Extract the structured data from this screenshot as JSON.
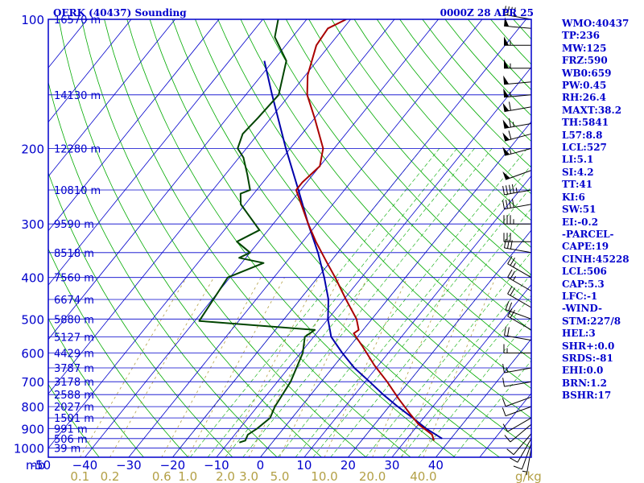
{
  "header": {
    "title_left": "OERK (40437) Sounding",
    "title_right": "0000Z 28 APR 25"
  },
  "indices": [
    "WMO:40437",
    "TP:236",
    "MW:125",
    "FRZ:590",
    "WB0:659",
    "PW:0.45",
    "RH:26.4",
    "MAXT:38.2",
    "TH:5841",
    "L57:8.8",
    "LCL:527",
    "LI:5.1",
    "SI:4.2",
    "TT:41",
    "KI:6",
    "SW:51",
    "EI:-0.2",
    "-PARCEL-",
    "CAPE:19",
    "CINH:45228",
    "LCL:506",
    "CAP:5.3",
    "LFC:-1",
    "-WIND-",
    "STM:227/8",
    "HEL:3",
    "SHR+:0.0",
    "SRDS:-81",
    "EHI:0.0",
    "BRN:1.2",
    "BSHR:17"
  ],
  "colors": {
    "frame": "#0000cc",
    "isobar": "#0000cc",
    "isotherm": "#0000cc",
    "dry_adiabat": "#00aa00",
    "moist_adiabat": "#00aa00",
    "mixing_ratio": "#b3a046",
    "mixing_ratio_label": "#b3a046",
    "temperature": "#aa0000",
    "dewpoint": "#004400",
    "parcel": "#0000aa",
    "wind_barb": "#000000"
  },
  "chart_data": {
    "type": "skew-t",
    "title": "OERK (40437) Sounding",
    "ylabel": "mb",
    "xlabel": "",
    "xlabel_units": "g/kg",
    "pressure_ticks": [
      100,
      200,
      300,
      400,
      500,
      600,
      700,
      800,
      900,
      1000
    ],
    "pressure_range": [
      1050,
      100
    ],
    "temperature_range": [
      -50,
      50
    ],
    "temperature_ticks": [
      -50,
      -40,
      -30,
      -20,
      -10,
      0,
      10,
      20,
      30,
      40
    ],
    "temperature_tick_labels": [
      "-50",
      "−40",
      "−30",
      "−20",
      "−10",
      "0",
      "10",
      "20",
      "30",
      "40"
    ],
    "height_labels": [
      {
        "p": 100,
        "label": "16570 m"
      },
      {
        "p": 150,
        "label": "14130 m"
      },
      {
        "p": 200,
        "label": "12280 m"
      },
      {
        "p": 250,
        "label": "10810 m"
      },
      {
        "p": 300,
        "label": "9590 m"
      },
      {
        "p": 350,
        "label": "8518 m"
      },
      {
        "p": 400,
        "label": "7560 m"
      },
      {
        "p": 450,
        "label": "6674 m"
      },
      {
        "p": 500,
        "label": "5880 m"
      },
      {
        "p": 550,
        "label": "5127 m"
      },
      {
        "p": 600,
        "label": "4429 m"
      },
      {
        "p": 650,
        "label": "3787 m"
      },
      {
        "p": 700,
        "label": "3178 m"
      },
      {
        "p": 750,
        "label": "2588 m"
      },
      {
        "p": 800,
        "label": "2027 m"
      },
      {
        "p": 850,
        "label": "1501 m"
      },
      {
        "p": 900,
        "label": "991 m"
      },
      {
        "p": 950,
        "label": "506 m"
      },
      {
        "p": 1000,
        "label": "39 m"
      }
    ],
    "mixing_ratios": [
      0.1,
      0.2,
      0.6,
      1.0,
      2.0,
      3.0,
      5.0,
      10.0,
      20.0,
      30.0,
      40.0
    ],
    "mixing_ratio_labels": [
      "0.1",
      "0.2",
      "0.6",
      "1.0",
      "2.0",
      "3.0",
      "5.0",
      "10.0",
      "20.0",
      "",
      "40.0"
    ],
    "temperature": [
      {
        "p": 960,
        "t": 36.5
      },
      {
        "p": 930,
        "t": 35.0
      },
      {
        "p": 880,
        "t": 30.0
      },
      {
        "p": 830,
        "t": 26.0
      },
      {
        "p": 770,
        "t": 21.0
      },
      {
        "p": 700,
        "t": 15.0
      },
      {
        "p": 640,
        "t": 9.0
      },
      {
        "p": 580,
        "t": 3.0
      },
      {
        "p": 540,
        "t": -1.5
      },
      {
        "p": 530,
        "t": -1.0
      },
      {
        "p": 500,
        "t": -3.5
      },
      {
        "p": 450,
        "t": -9.5
      },
      {
        "p": 400,
        "t": -16.0
      },
      {
        "p": 370,
        "t": -20.5
      },
      {
        "p": 330,
        "t": -27.0
      },
      {
        "p": 300,
        "t": -32.0
      },
      {
        "p": 250,
        "t": -41.0
      },
      {
        "p": 240,
        "t": -41.0
      },
      {
        "p": 220,
        "t": -40.0
      },
      {
        "p": 200,
        "t": -42.5
      },
      {
        "p": 170,
        "t": -50.0
      },
      {
        "p": 150,
        "t": -56.0
      },
      {
        "p": 135,
        "t": -59.5
      },
      {
        "p": 115,
        "t": -63.0
      },
      {
        "p": 105,
        "t": -63.5
      },
      {
        "p": 100,
        "t": -61.0
      }
    ],
    "dewpoint": [
      {
        "p": 970,
        "t": -7.5
      },
      {
        "p": 960,
        "t": -6.5
      },
      {
        "p": 930,
        "t": -7.0
      },
      {
        "p": 900,
        "t": -6.0
      },
      {
        "p": 850,
        "t": -5.0
      },
      {
        "p": 800,
        "t": -6.0
      },
      {
        "p": 700,
        "t": -7.0
      },
      {
        "p": 600,
        "t": -9.5
      },
      {
        "p": 550,
        "t": -12.0
      },
      {
        "p": 530,
        "t": -11.0
      },
      {
        "p": 505,
        "t": -39.0
      },
      {
        "p": 400,
        "t": -40.5
      },
      {
        "p": 370,
        "t": -35.0
      },
      {
        "p": 360,
        "t": -41.5
      },
      {
        "p": 350,
        "t": -40.0
      },
      {
        "p": 330,
        "t": -45.0
      },
      {
        "p": 310,
        "t": -42.0
      },
      {
        "p": 270,
        "t": -51.0
      },
      {
        "p": 255,
        "t": -53.0
      },
      {
        "p": 250,
        "t": -51.5
      },
      {
        "p": 230,
        "t": -55.0
      },
      {
        "p": 210,
        "t": -59.0
      },
      {
        "p": 200,
        "t": -62.0
      },
      {
        "p": 185,
        "t": -63.5
      },
      {
        "p": 170,
        "t": -63.0
      },
      {
        "p": 150,
        "t": -62.5
      },
      {
        "p": 125,
        "t": -67.0
      },
      {
        "p": 110,
        "t": -74.0
      },
      {
        "p": 100,
        "t": -76.5
      }
    ],
    "parcel": [
      {
        "p": 950,
        "t": 38.0
      },
      {
        "p": 900,
        "t": 32.5
      },
      {
        "p": 850,
        "t": 27.5
      },
      {
        "p": 800,
        "t": 22.0
      },
      {
        "p": 750,
        "t": 16.5
      },
      {
        "p": 700,
        "t": 11.0
      },
      {
        "p": 650,
        "t": 5.0
      },
      {
        "p": 600,
        "t": -0.5
      },
      {
        "p": 550,
        "t": -6.0
      },
      {
        "p": 500,
        "t": -10.0
      },
      {
        "p": 450,
        "t": -13.5
      },
      {
        "p": 400,
        "t": -18.5
      },
      {
        "p": 350,
        "t": -24.5
      },
      {
        "p": 300,
        "t": -32.0
      },
      {
        "p": 250,
        "t": -40.5
      },
      {
        "p": 200,
        "t": -51.0
      },
      {
        "p": 150,
        "t": -64.0
      },
      {
        "p": 125,
        "t": -72.0
      }
    ],
    "wind_barbs": [
      {
        "p": 1000,
        "dir": 190,
        "spd": 5
      },
      {
        "p": 975,
        "dir": 200,
        "spd": 10
      },
      {
        "p": 950,
        "dir": 210,
        "spd": 10
      },
      {
        "p": 925,
        "dir": 220,
        "spd": 10
      },
      {
        "p": 880,
        "dir": 230,
        "spd": 10
      },
      {
        "p": 850,
        "dir": 240,
        "spd": 10
      },
      {
        "p": 800,
        "dir": 250,
        "spd": 10
      },
      {
        "p": 760,
        "dir": 250,
        "spd": 10
      },
      {
        "p": 700,
        "dir": 260,
        "spd": 10
      },
      {
        "p": 650,
        "dir": 260,
        "spd": 15
      },
      {
        "p": 600,
        "dir": 270,
        "spd": 15
      },
      {
        "p": 560,
        "dir": 280,
        "spd": 20
      },
      {
        "p": 530,
        "dir": 300,
        "spd": 20
      },
      {
        "p": 500,
        "dir": 290,
        "spd": 20
      },
      {
        "p": 470,
        "dir": 300,
        "spd": 20
      },
      {
        "p": 430,
        "dir": 300,
        "spd": 25
      },
      {
        "p": 400,
        "dir": 300,
        "spd": 25
      },
      {
        "p": 350,
        "dir": 280,
        "spd": 30
      },
      {
        "p": 330,
        "dir": 270,
        "spd": 30
      },
      {
        "p": 300,
        "dir": 270,
        "spd": 35
      },
      {
        "p": 270,
        "dir": 260,
        "spd": 40
      },
      {
        "p": 250,
        "dir": 260,
        "spd": 45
      },
      {
        "p": 225,
        "dir": 250,
        "spd": 50
      },
      {
        "p": 200,
        "dir": 255,
        "spd": 55
      },
      {
        "p": 185,
        "dir": 255,
        "spd": 60
      },
      {
        "p": 175,
        "dir": 260,
        "spd": 65
      },
      {
        "p": 160,
        "dir": 260,
        "spd": 60
      },
      {
        "p": 150,
        "dir": 265,
        "spd": 55
      },
      {
        "p": 140,
        "dir": 265,
        "spd": 50
      },
      {
        "p": 130,
        "dir": 270,
        "spd": 55
      },
      {
        "p": 115,
        "dir": 270,
        "spd": 55
      },
      {
        "p": 105,
        "dir": 275,
        "spd": 50
      },
      {
        "p": 100,
        "dir": 280,
        "spd": 40
      }
    ]
  }
}
